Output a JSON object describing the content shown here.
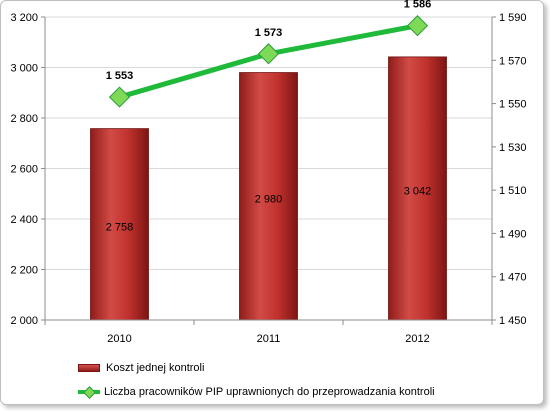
{
  "chart_data": {
    "type": "bar",
    "categories": [
      "2010",
      "2011",
      "2012"
    ],
    "series": [
      {
        "name": "Koszt jednej kontroli",
        "type": "bar",
        "axis": "left",
        "values": [
          2758,
          2980,
          3042
        ],
        "labels": [
          "2 758",
          "2 980",
          "3 042"
        ],
        "color": "#b5302c"
      },
      {
        "name": "Liczba pracowników PIP uprawnionych do przeprowadzania kontroli",
        "type": "line",
        "axis": "right",
        "values": [
          1553,
          1573,
          1586
        ],
        "labels": [
          "1 553",
          "1 573",
          "1 586"
        ],
        "color": "#1fba3a",
        "marker_color": "#7ed957"
      }
    ],
    "left_axis": {
      "ylim": [
        2000,
        3200
      ],
      "ticks": [
        2000,
        2200,
        2400,
        2600,
        2800,
        3000,
        3200
      ],
      "tick_labels": [
        "2 000",
        "2 200",
        "2 400",
        "2 600",
        "2 800",
        "3 000",
        "3 200"
      ]
    },
    "right_axis": {
      "ylim": [
        1450,
        1590
      ],
      "ticks": [
        1450,
        1470,
        1490,
        1510,
        1530,
        1550,
        1570,
        1590
      ],
      "tick_labels": [
        "1 450",
        "1 470",
        "1 490",
        "1 510",
        "1 530",
        "1 550",
        "1 570",
        "1 590"
      ]
    },
    "grid": "horizontal",
    "legend_placement": "bottom"
  }
}
